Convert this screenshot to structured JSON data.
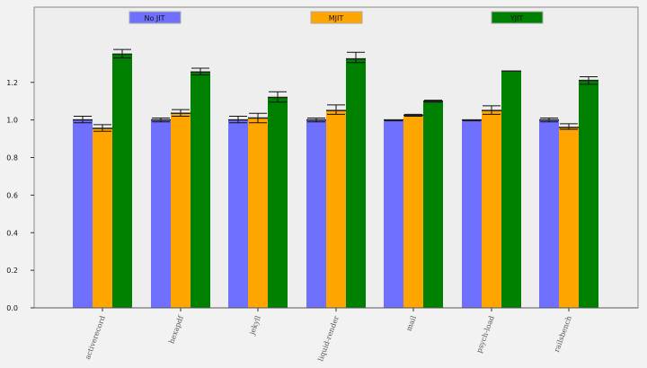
{
  "chart_data": {
    "type": "bar",
    "categories": [
      "activerecord",
      "hexapdf",
      "jekyll",
      "liquid-render",
      "mail",
      "psych-load",
      "railsbench"
    ],
    "series": [
      {
        "name": "No JIT",
        "color": "#7070ff",
        "values": [
          1.0,
          1.0,
          1.0,
          1.0,
          1.0,
          1.0,
          1.0
        ],
        "err_low": [
          0.985,
          0.99,
          0.985,
          0.99,
          0.995,
          0.995,
          0.99
        ],
        "err_high": [
          1.02,
          1.01,
          1.02,
          1.01,
          1.0,
          1.0,
          1.01
        ]
      },
      {
        "name": "MJIT",
        "color": "#ffa500",
        "values": [
          0.955,
          1.035,
          1.01,
          1.05,
          1.025,
          1.05,
          0.96
        ],
        "err_low": [
          0.94,
          1.02,
          0.985,
          1.03,
          1.02,
          1.03,
          0.95
        ],
        "err_high": [
          0.975,
          1.055,
          1.035,
          1.08,
          1.03,
          1.075,
          0.98
        ]
      },
      {
        "name": "YJIT",
        "color": "#008000",
        "values": [
          1.35,
          1.255,
          1.12,
          1.325,
          1.1,
          1.26,
          1.21
        ],
        "err_low": [
          1.33,
          1.24,
          1.095,
          1.305,
          1.095,
          1.26,
          1.19
        ],
        "err_high": [
          1.375,
          1.275,
          1.15,
          1.36,
          1.105,
          1.26,
          1.23
        ]
      }
    ],
    "yticks": [
      "0.0",
      "0.2",
      "0.4",
      "0.6",
      "0.8",
      "1.0",
      "1.2"
    ],
    "ylim": [
      0,
      1.6
    ],
    "legend": "top",
    "grid": false
  }
}
